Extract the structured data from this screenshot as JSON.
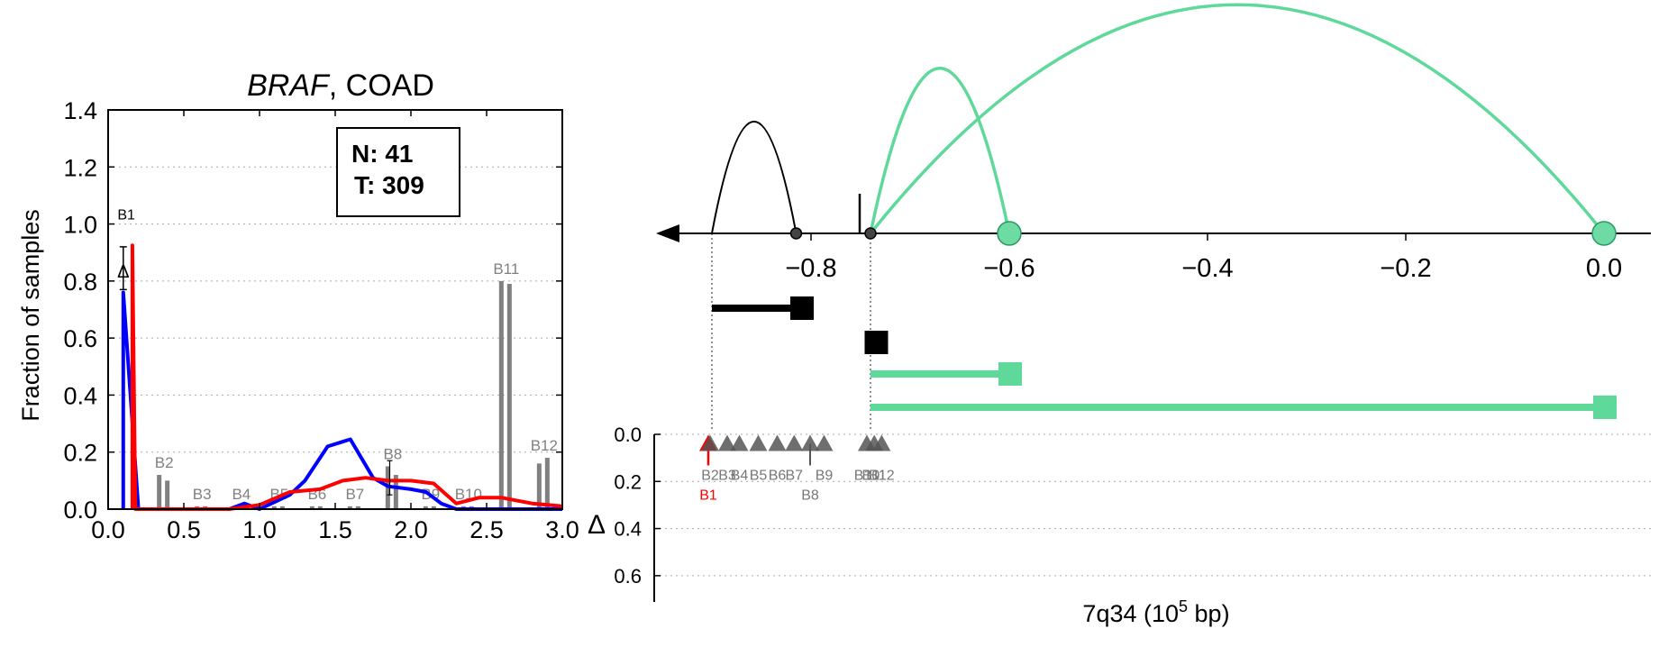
{
  "figure": {
    "left_panel": {
      "title_gene": "BRAF",
      "title_rest": ", COAD",
      "ylabel": "Fraction of samples",
      "counts_box": {
        "n_label": "N: 41",
        "t_label": "T: 309"
      },
      "delta_marker_label": "Δ"
    },
    "right_panel": {
      "xlabel_prefix": "7q34 (10",
      "xlabel_exponent": "5",
      "xlabel_suffix": " bp)",
      "delta_axis_label": "Δ"
    }
  },
  "chart_data": [
    {
      "id": "breakpoint_distribution",
      "type": "line",
      "title": "BRAF, COAD",
      "xlabel": "",
      "ylabel": "Fraction of samples",
      "xlim": [
        0.0,
        3.0
      ],
      "ylim": [
        0.0,
        1.4
      ],
      "x_ticks": [
        0.0,
        0.5,
        1.0,
        1.5,
        2.0,
        2.5,
        3.0
      ],
      "x_tick_labels": [
        "0.0",
        "0.5",
        "1.0",
        "1.5",
        "2.0",
        "2.5",
        "3.0"
      ],
      "y_ticks": [
        0.0,
        0.2,
        0.4,
        0.6,
        0.8,
        1.0,
        1.2,
        1.4
      ],
      "y_tick_labels": [
        "0.0",
        "0.2",
        "0.4",
        "0.6",
        "0.8",
        "1.0",
        "1.2",
        "1.4"
      ],
      "grid": "horizontal dotted",
      "annotation_box": {
        "N": 41,
        "T": 309
      },
      "series": [
        {
          "color": "#0000ff",
          "x": [
            0.1,
            0.1,
            0.2,
            0.6,
            0.8,
            0.9,
            1.0,
            1.2,
            1.3,
            1.45,
            1.6,
            1.75,
            1.85,
            2.0,
            2.1,
            2.2,
            2.3,
            3.0
          ],
          "y": [
            0.0,
            0.76,
            0.0,
            0.0,
            0.0,
            0.02,
            0.0,
            0.05,
            0.1,
            0.22,
            0.245,
            0.11,
            0.08,
            0.07,
            0.06,
            0.02,
            0.0,
            0.0
          ]
        },
        {
          "color": "#ff0000",
          "x": [
            0.16,
            0.16,
            0.18,
            0.6,
            0.8,
            1.0,
            1.2,
            1.4,
            1.55,
            1.7,
            1.85,
            2.0,
            2.15,
            2.3,
            2.45,
            2.6,
            2.8,
            3.0
          ],
          "y": [
            0.0,
            0.925,
            0.0,
            0.0,
            0.0,
            0.015,
            0.06,
            0.07,
            0.1,
            0.11,
            0.1,
            0.1,
            0.09,
            0.02,
            0.04,
            0.04,
            0.02,
            0.01
          ]
        }
      ],
      "bars": [
        {
          "label": "B1",
          "x": 0.12,
          "value_left": null,
          "value_right": null
        },
        {
          "label": "B2",
          "x": 0.37,
          "value_left": 0.12,
          "value_right": 0.1
        },
        {
          "label": "B3",
          "x": 0.62,
          "value_left": 0.01,
          "value_right": 0.01
        },
        {
          "label": "B4",
          "x": 0.88,
          "value_left": 0.01,
          "value_right": 0.01
        },
        {
          "label": "B5",
          "x": 1.13,
          "value_left": 0.01,
          "value_right": 0.01
        },
        {
          "label": "B6",
          "x": 1.38,
          "value_left": 0.01,
          "value_right": 0.01
        },
        {
          "label": "B7",
          "x": 1.63,
          "value_left": 0.01,
          "value_right": 0.01
        },
        {
          "label": "B8",
          "x": 1.88,
          "value_left": 0.15,
          "value_right": 0.12
        },
        {
          "label": "B9",
          "x": 2.13,
          "value_left": 0.01,
          "value_right": 0.01
        },
        {
          "label": "B10",
          "x": 2.38,
          "value_left": 0.01,
          "value_right": 0.01
        },
        {
          "label": "B11",
          "x": 2.63,
          "value_left": 0.8,
          "value_right": 0.79
        },
        {
          "label": "B12",
          "x": 2.88,
          "value_left": 0.16,
          "value_right": 0.18
        }
      ],
      "delta_marker": {
        "x": 0.1,
        "y": 0.84,
        "err_low": 0.77,
        "err_high": 0.92
      },
      "b8_errorbar": {
        "x": 1.86,
        "y": 0.1,
        "err_low": 0.05,
        "err_high": 0.17
      }
    },
    {
      "id": "genomic_track",
      "type": "scatter",
      "xlabel": "7q34 (10^5 bp)",
      "xlim": [
        -0.99,
        0.14
      ],
      "x_ticks": [
        -0.8,
        -0.6,
        -0.4,
        -0.2,
        0.0
      ],
      "x_tick_labels": [
        "−0.8",
        "−0.6",
        "−0.4",
        "−0.2",
        "0.0"
      ],
      "direction_arrow": "left",
      "arcs": [
        {
          "from": -0.9,
          "to": -0.815,
          "color": "#000000",
          "peak": 1.32
        },
        {
          "from": -0.74,
          "to": -0.6,
          "color": "#5fd99a",
          "peak": 1.95
        },
        {
          "from": -0.74,
          "to": 0.0,
          "color": "#5fd99a",
          "peak": 2.7
        }
      ],
      "points": [
        {
          "x": -0.815,
          "color": "#000000",
          "size": "small"
        },
        {
          "x": -0.74,
          "color": "#000000",
          "size": "small"
        },
        {
          "x": -0.6,
          "color": "#5fd99a",
          "size": "large"
        },
        {
          "x": 0.0,
          "color": "#5fd99a",
          "size": "large"
        }
      ],
      "segments": [
        {
          "start": -0.9,
          "end": -0.81,
          "row": 1,
          "color": "#000000"
        },
        {
          "start": -0.74,
          "end": -0.735,
          "row": 2,
          "color": "#000000"
        },
        {
          "start": -0.74,
          "end": -0.6,
          "row": 3,
          "color": "#5fd99a"
        },
        {
          "start": -0.74,
          "end": 0.0,
          "row": 4,
          "color": "#5fd99a"
        }
      ],
      "delta_axis": {
        "ylim": [
          0.0,
          0.7
        ],
        "y_ticks": [
          0.0,
          0.2,
          0.4,
          0.6
        ],
        "y_tick_labels": [
          "0.0",
          "0.2",
          "0.4",
          "0.6"
        ],
        "grid": "horizontal dotted"
      },
      "breakpoint_markers": [
        {
          "label": "B1",
          "x": -0.9,
          "delta": 0.04,
          "color": "#ff0000",
          "label_row": 2
        },
        {
          "label": "B2",
          "x": -0.9,
          "delta": 0.04,
          "color": "#555555",
          "label_row": 1
        },
        {
          "label": "B3",
          "x": -0.89,
          "delta": 0.04,
          "color": "#555555",
          "label_row": 1
        },
        {
          "label": "B4",
          "x": -0.885,
          "delta": 0.04,
          "color": "#555555",
          "label_row": 1
        },
        {
          "label": "B5",
          "x": -0.875,
          "delta": 0.04,
          "color": "#555555",
          "label_row": 1
        },
        {
          "label": "B6",
          "x": -0.865,
          "delta": 0.04,
          "color": "#555555",
          "label_row": 1
        },
        {
          "label": "B7",
          "x": -0.857,
          "delta": 0.04,
          "color": "#555555",
          "label_row": 1
        },
        {
          "label": "B8",
          "x": -0.85,
          "delta": 0.04,
          "color": "#555555",
          "label_row": 2
        },
        {
          "label": "B9",
          "x": -0.845,
          "delta": 0.04,
          "color": "#555555",
          "label_row": 1
        },
        {
          "label": "B10",
          "x": -0.74,
          "delta": 0.04,
          "color": "#555555",
          "label_row": 1
        },
        {
          "label": "B11",
          "x": -0.738,
          "delta": 0.04,
          "color": "#555555",
          "label_row": 1
        },
        {
          "label": "B12",
          "x": -0.736,
          "delta": 0.04,
          "color": "#555555",
          "label_row": 1
        }
      ],
      "guide_lines_x": [
        -0.9,
        -0.74
      ]
    }
  ]
}
